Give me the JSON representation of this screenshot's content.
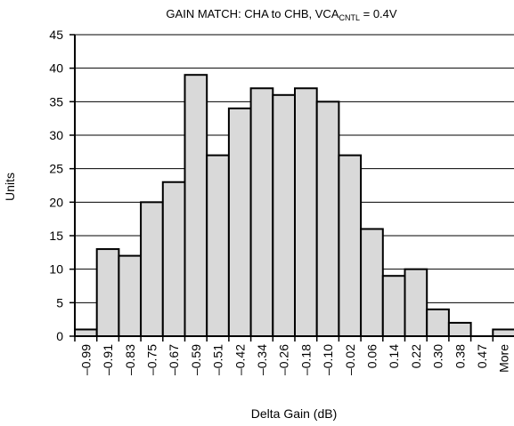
{
  "chart_data": {
    "type": "bar",
    "title_main": "GAIN MATCH: CHA to CHB, VCA",
    "title_sub": "CNTL",
    "title_tail": " = 0.4V",
    "xlabel": "Delta Gain (dB)",
    "ylabel": "Units",
    "ylim": [
      0,
      45
    ],
    "yticks": [
      0,
      5,
      10,
      15,
      20,
      25,
      30,
      35,
      40,
      45
    ],
    "grid": "horizontal",
    "categories": [
      "–0.99",
      "–0.91",
      "–0.83",
      "–0.75",
      "–0.67",
      "–0.59",
      "–0.51",
      "–0.42",
      "–0.34",
      "–0.26",
      "–0.18",
      "–0.10",
      "–0.02",
      "0.06",
      "0.14",
      "0.22",
      "0.30",
      "0.38",
      "0.47",
      "More"
    ],
    "values": [
      1,
      13,
      12,
      20,
      23,
      39,
      27,
      34,
      37,
      36,
      37,
      35,
      27,
      16,
      9,
      10,
      4,
      2,
      0,
      1
    ],
    "bar_color": "#d9d9d9",
    "edge_color": "#000000"
  }
}
